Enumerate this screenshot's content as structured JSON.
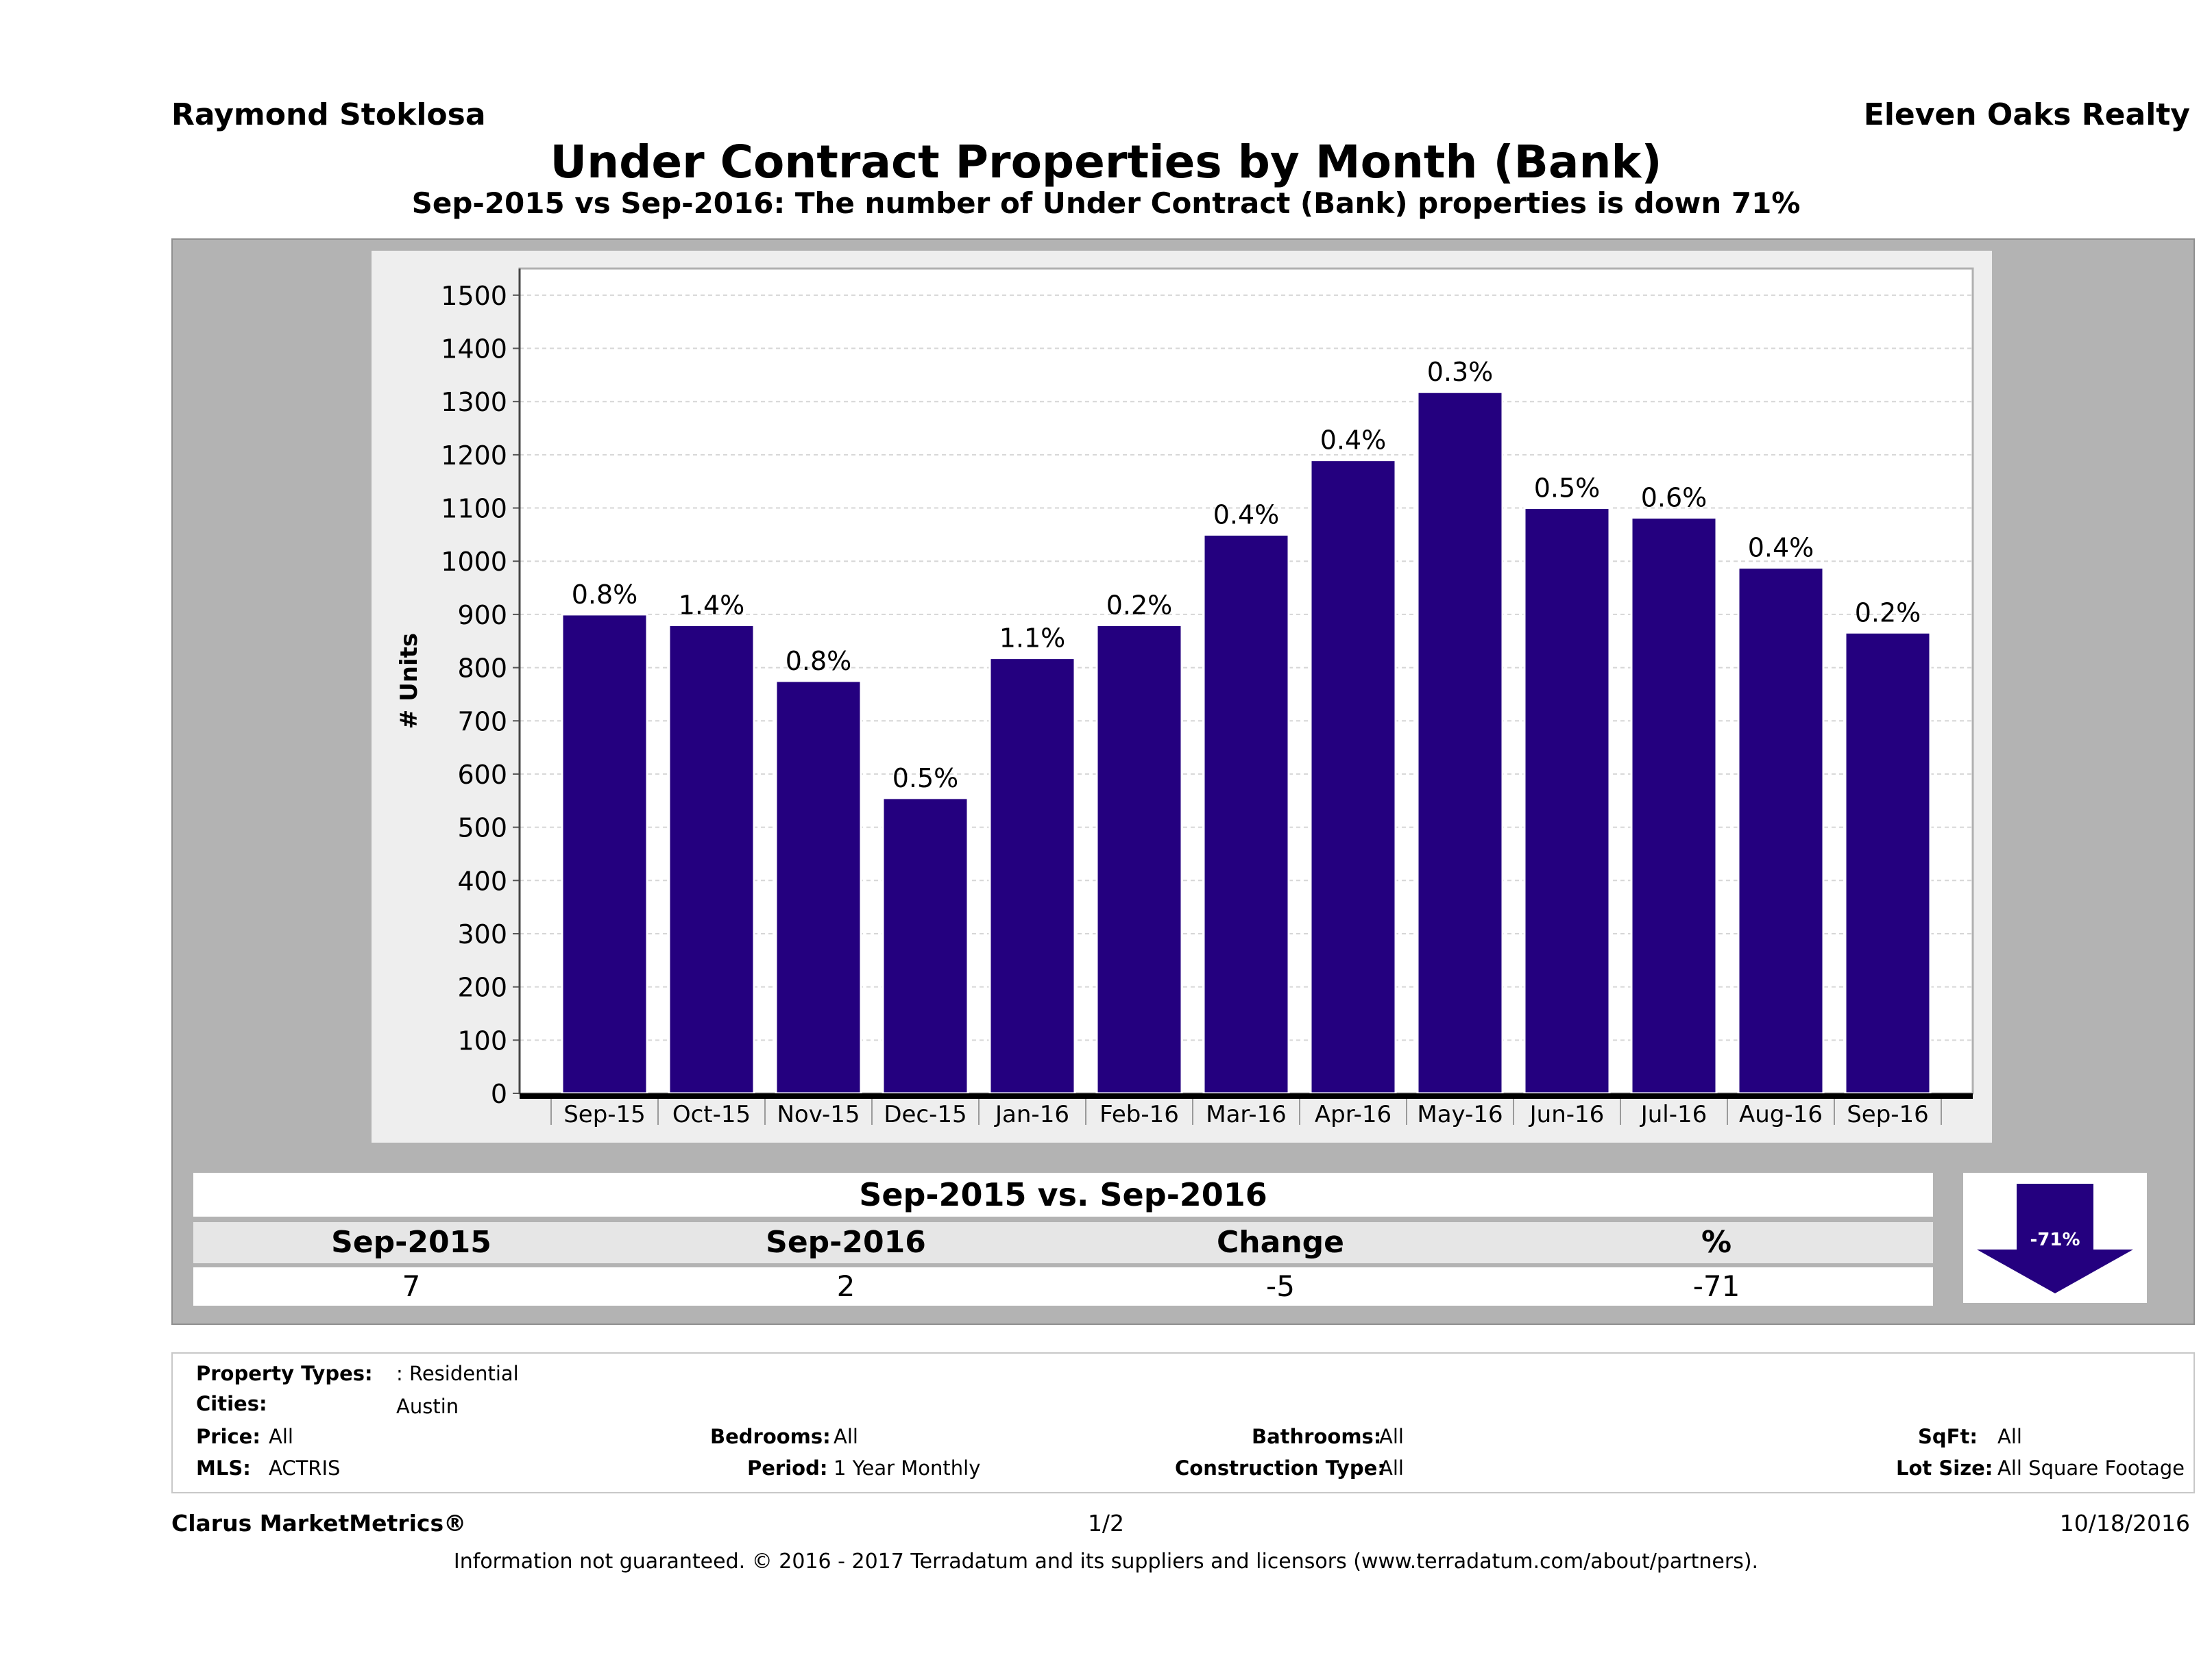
{
  "header": {
    "agent_name": "Raymond Stoklosa",
    "office_name": "Eleven Oaks Realty",
    "title": "Under Contract Properties by Month (Bank)",
    "subtitle": "Sep-2015 vs Sep-2016: The number of Under Contract (Bank)  properties is down 71%"
  },
  "colors": {
    "bar": "#24007f",
    "bar_stroke": "#ffffff",
    "frame": "#b3b3b3",
    "plot_panel": "#eeeeee",
    "plot_bg": "#ffffff",
    "arrow": "#24007f"
  },
  "chart_data": {
    "type": "bar",
    "title": "",
    "xlabel": "",
    "ylabel": "# Units",
    "ylim": [
      0,
      1550
    ],
    "yticks": [
      0,
      100,
      200,
      300,
      400,
      500,
      600,
      700,
      800,
      900,
      1000,
      1100,
      1200,
      1300,
      1400,
      1500
    ],
    "grid": true,
    "legend": "none",
    "categories": [
      "Sep-15",
      "Oct-15",
      "Nov-15",
      "Dec-15",
      "Jan-16",
      "Feb-16",
      "Mar-16",
      "Apr-16",
      "May-16",
      "Jun-16",
      "Jul-16",
      "Aug-16",
      "Sep-16"
    ],
    "values": [
      900,
      880,
      775,
      555,
      818,
      880,
      1050,
      1190,
      1318,
      1100,
      1082,
      988,
      866
    ],
    "data_labels": [
      "0.8%",
      "1.4%",
      "0.8%",
      "0.5%",
      "1.1%",
      "0.2%",
      "0.4%",
      "0.4%",
      "0.3%",
      "0.5%",
      "0.6%",
      "0.4%",
      "0.2%"
    ]
  },
  "comparison": {
    "title": "Sep-2015 vs. Sep-2016",
    "headers": [
      "Sep-2015",
      "Sep-2016",
      "Change",
      "%"
    ],
    "values": [
      "7",
      "2",
      "-5",
      "-71"
    ],
    "arrow_label": "-71%",
    "arrow_direction": "down"
  },
  "filters": {
    "property_types": {
      "label": "Property Types:",
      "value": ": Residential"
    },
    "cities": {
      "label": "Cities:",
      "value": "Austin"
    },
    "price": {
      "label": "Price:",
      "value": "All"
    },
    "bedrooms": {
      "label": "Bedrooms:",
      "value": "All"
    },
    "bathrooms": {
      "label": "Bathrooms:",
      "value": "All"
    },
    "sqft": {
      "label": "SqFt:",
      "value": "All"
    },
    "mls": {
      "label": "MLS:",
      "value": "ACTRIS"
    },
    "period": {
      "label": "Period:",
      "value": "1 Year Monthly"
    },
    "construction_type": {
      "label": "Construction Type:",
      "value": "All"
    },
    "lot_size": {
      "label": "Lot Size:",
      "value": "All Square Footage"
    }
  },
  "footer": {
    "brand": "Clarus MarketMetrics®",
    "page": "1/2",
    "date": "10/18/2016",
    "disclaimer": "Information not guaranteed. © 2016 - 2017 Terradatum and its suppliers and licensors (www.terradatum.com/about/partners)."
  }
}
